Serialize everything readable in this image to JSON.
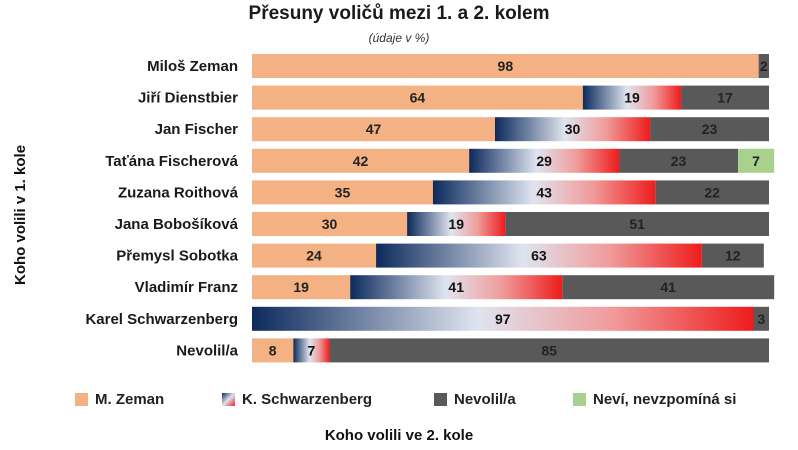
{
  "chart_data": {
    "type": "bar",
    "orientation": "horizontal",
    "stacked": true,
    "title": "Přesuny voličů mezi 1. a 2. kolem",
    "subtitle": "(údaje v %)",
    "ylabel": "Koho volili v 1. kole",
    "xlabel": "Koho volili ve 2. kole",
    "categories": [
      "Miloš Zeman",
      "Jiří Dienstbier",
      "Jan Fischer",
      "Taťána Fischerová",
      "Zuzana Roithová",
      "Jana Bobošíková",
      "Přemysl Sobotka",
      "Vladimír Franz",
      "Karel Schwarzenberg",
      "Nevolil/a"
    ],
    "series": [
      {
        "name": "M. Zeman",
        "color": "#f4b183",
        "values": [
          98,
          64,
          47,
          42,
          35,
          30,
          24,
          19,
          0,
          8
        ]
      },
      {
        "name": "K. Schwarzenberg",
        "color": "gradient-navy-white-red",
        "values": [
          0,
          19,
          30,
          29,
          43,
          19,
          63,
          41,
          97,
          7
        ]
      },
      {
        "name": "Nevolil/a",
        "color": "#595959",
        "values": [
          2,
          17,
          23,
          23,
          22,
          51,
          12,
          41,
          3,
          85
        ]
      },
      {
        "name": "Neví, nevzpomíná si",
        "color": "#a9d18e",
        "values": [
          0,
          0,
          0,
          7,
          0,
          0,
          0,
          0,
          0,
          0
        ]
      }
    ],
    "xlim": [
      0,
      100
    ],
    "grid": false,
    "legend_position": "bottom"
  }
}
